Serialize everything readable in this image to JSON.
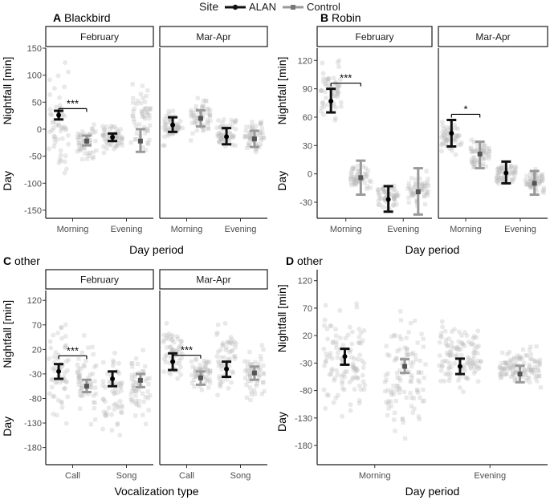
{
  "legend": {
    "title": "Site",
    "placement": "top",
    "entries": [
      {
        "label": "ALAN",
        "color": "#111111",
        "marker": "circle"
      },
      {
        "label": "Control",
        "color": "#999999",
        "marker": "square"
      }
    ]
  },
  "colors": {
    "ALAN": "#111111",
    "Control": "#999999",
    "raw_points": "#b5b5b5",
    "strip_fill": "#ffffff"
  },
  "chart_data": [
    {
      "panel": "A",
      "title": "Blackbird",
      "type": "scatter",
      "ylabel_top": "Nightfall [min]",
      "ylabel_bottom": "Day",
      "xlabel": "Day period",
      "ylim": [
        -165,
        150
      ],
      "yticks": [
        150,
        100,
        50,
        0,
        -50,
        -100,
        -150
      ],
      "x_categories": [
        "Morning",
        "Evening"
      ],
      "facets": [
        {
          "label": "February",
          "groups": [
            {
              "category": "Morning",
              "site": "ALAN",
              "mean": 26,
              "lower": 18,
              "upper": 34,
              "spread": [
                -120,
                135
              ]
            },
            {
              "category": "Morning",
              "site": "Control",
              "mean": -22,
              "lower": -30,
              "upper": -12,
              "spread": [
                -65,
                25
              ]
            },
            {
              "category": "Evening",
              "site": "ALAN",
              "mean": -15,
              "lower": -22,
              "upper": -8,
              "spread": [
                -50,
                20
              ]
            },
            {
              "category": "Evening",
              "site": "Control",
              "mean": -22,
              "lower": -42,
              "upper": 0,
              "spread": [
                -60,
                100
              ]
            }
          ],
          "annotations": [
            {
              "text": "***",
              "between": [
                "ALAN",
                "Control"
              ],
              "category": "Morning",
              "y": 38
            }
          ]
        },
        {
          "label": "Mar-Apr",
          "groups": [
            {
              "category": "Morning",
              "site": "ALAN",
              "mean": 8,
              "lower": -5,
              "upper": 22,
              "spread": [
                -35,
                45
              ]
            },
            {
              "category": "Morning",
              "site": "Control",
              "mean": 20,
              "lower": 5,
              "upper": 35,
              "spread": [
                -30,
                70
              ]
            },
            {
              "category": "Evening",
              "site": "ALAN",
              "mean": -14,
              "lower": -28,
              "upper": 2,
              "spread": [
                -45,
                30
              ]
            },
            {
              "category": "Evening",
              "site": "Control",
              "mean": -18,
              "lower": -33,
              "upper": -3,
              "spread": [
                -50,
                25
              ]
            }
          ],
          "annotations": []
        }
      ]
    },
    {
      "panel": "B",
      "title": "Robin",
      "type": "scatter",
      "ylabel_top": "Nightfall [min]",
      "ylabel_bottom": "Day",
      "xlabel": "Day period",
      "ylim": [
        -47,
        133
      ],
      "yticks": [
        120,
        90,
        60,
        30,
        0,
        -30
      ],
      "x_categories": [
        "Morning",
        "Evening"
      ],
      "facets": [
        {
          "label": "February",
          "groups": [
            {
              "category": "Morning",
              "site": "ALAN",
              "mean": 77,
              "lower": 65,
              "upper": 90,
              "spread": [
                50,
                125
              ]
            },
            {
              "category": "Morning",
              "site": "Control",
              "mean": -4,
              "lower": -22,
              "upper": 14,
              "spread": [
                -20,
                15
              ]
            },
            {
              "category": "Evening",
              "site": "ALAN",
              "mean": -27,
              "lower": -40,
              "upper": -13,
              "spread": [
                -40,
                -5
              ]
            },
            {
              "category": "Evening",
              "site": "Control",
              "mean": -19,
              "lower": -43,
              "upper": 6,
              "spread": [
                -40,
                5
              ]
            }
          ],
          "annotations": [
            {
              "text": "***",
              "between": [
                "ALAN",
                "Control"
              ],
              "category": "Morning",
              "y": 96
            }
          ]
        },
        {
          "label": "Mar-Apr",
          "groups": [
            {
              "category": "Morning",
              "site": "ALAN",
              "mean": 43,
              "lower": 29,
              "upper": 57,
              "spread": [
                15,
                60
              ]
            },
            {
              "category": "Morning",
              "site": "Control",
              "mean": 21,
              "lower": 6,
              "upper": 34,
              "spread": [
                0,
                40
              ]
            },
            {
              "category": "Evening",
              "site": "ALAN",
              "mean": 1,
              "lower": -10,
              "upper": 13,
              "spread": [
                -15,
                15
              ]
            },
            {
              "category": "Evening",
              "site": "Control",
              "mean": -10,
              "lower": -22,
              "upper": 3,
              "spread": [
                -25,
                10
              ]
            }
          ],
          "annotations": [
            {
              "text": "*",
              "between": [
                "ALAN",
                "Control"
              ],
              "category": "Morning",
              "y": 63
            }
          ]
        }
      ]
    },
    {
      "panel": "C",
      "title": "other",
      "type": "scatter",
      "ylabel_top": "Nightfall [min]",
      "ylabel_bottom": "Day",
      "xlabel": "Vocalization type",
      "ylim": [
        -215,
        140
      ],
      "yticks": [
        120,
        70,
        20,
        -30,
        -80,
        -130,
        -180
      ],
      "x_categories": [
        "Call",
        "Song"
      ],
      "facets": [
        {
          "label": "February",
          "groups": [
            {
              "category": "Call",
              "site": "ALAN",
              "mean": -25,
              "lower": -40,
              "upper": -10,
              "spread": [
                -170,
                115
              ]
            },
            {
              "category": "Call",
              "site": "Control",
              "mean": -55,
              "lower": -67,
              "upper": -42,
              "spread": [
                -150,
                60
              ]
            },
            {
              "category": "Song",
              "site": "ALAN",
              "mean": -40,
              "lower": -55,
              "upper": -25,
              "spread": [
                -200,
                40
              ]
            },
            {
              "category": "Song",
              "site": "Control",
              "mean": -43,
              "lower": -57,
              "upper": -30,
              "spread": [
                -160,
                40
              ]
            }
          ],
          "annotations": [
            {
              "text": "***",
              "between": [
                "ALAN",
                "Control"
              ],
              "category": "Call",
              "y": 7
            }
          ]
        },
        {
          "label": "Mar-Apr",
          "groups": [
            {
              "category": "Call",
              "site": "ALAN",
              "mean": -5,
              "lower": -22,
              "upper": 12,
              "spread": [
                -60,
                85
              ]
            },
            {
              "category": "Call",
              "site": "Control",
              "mean": -38,
              "lower": -52,
              "upper": -25,
              "spread": [
                -70,
                10
              ]
            },
            {
              "category": "Song",
              "site": "ALAN",
              "mean": -20,
              "lower": -36,
              "upper": -5,
              "spread": [
                -110,
                110
              ]
            },
            {
              "category": "Song",
              "site": "Control",
              "mean": -28,
              "lower": -42,
              "upper": -15,
              "spread": [
                -100,
                40
              ]
            }
          ],
          "annotations": [
            {
              "text": "***",
              "between": [
                "ALAN",
                "Control"
              ],
              "category": "Call",
              "y": 8
            }
          ]
        }
      ]
    },
    {
      "panel": "D",
      "title": "other",
      "type": "scatter",
      "ylabel_top": "Nightfall [min]",
      "ylabel_bottom": "Day",
      "xlabel": "Day period",
      "ylim": [
        -215,
        140
      ],
      "yticks": [
        120,
        70,
        20,
        -30,
        -80,
        -130,
        -180
      ],
      "x_categories": [
        "Morning",
        "Evening"
      ],
      "facets": [
        {
          "label": "",
          "groups": [
            {
              "category": "Morning",
              "site": "ALAN",
              "mean": -18,
              "lower": -33,
              "upper": -4,
              "spread": [
                -170,
                115
              ]
            },
            {
              "category": "Morning",
              "site": "Control",
              "mean": -36,
              "lower": -48,
              "upper": -23,
              "spread": [
                -200,
                80
              ]
            },
            {
              "category": "Evening",
              "site": "ALAN",
              "mean": -36,
              "lower": -50,
              "upper": -22,
              "spread": [
                -100,
                70
              ]
            },
            {
              "category": "Evening",
              "site": "Control",
              "mean": -50,
              "lower": -65,
              "upper": -35,
              "spread": [
                -80,
                10
              ]
            }
          ],
          "annotations": []
        }
      ]
    }
  ]
}
